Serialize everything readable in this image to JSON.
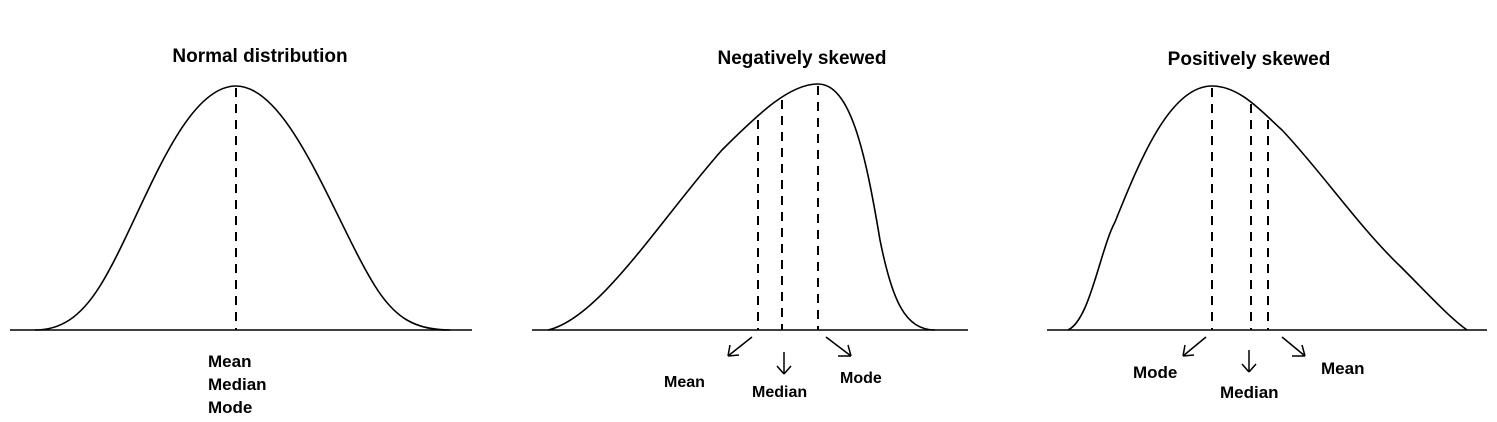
{
  "panels": {
    "normal": {
      "title": "Normal distribution",
      "labels": [
        "Mean",
        "Median",
        "Mode"
      ]
    },
    "negative": {
      "title": "Negatively skewed",
      "mean": "Mean",
      "median": "Median",
      "mode": "Mode"
    },
    "positive": {
      "title": "Positively skewed",
      "mode": "Mode",
      "median": "Median",
      "mean": "Mean"
    }
  },
  "colors": {
    "line": "#000000",
    "background": "#ffffff"
  }
}
